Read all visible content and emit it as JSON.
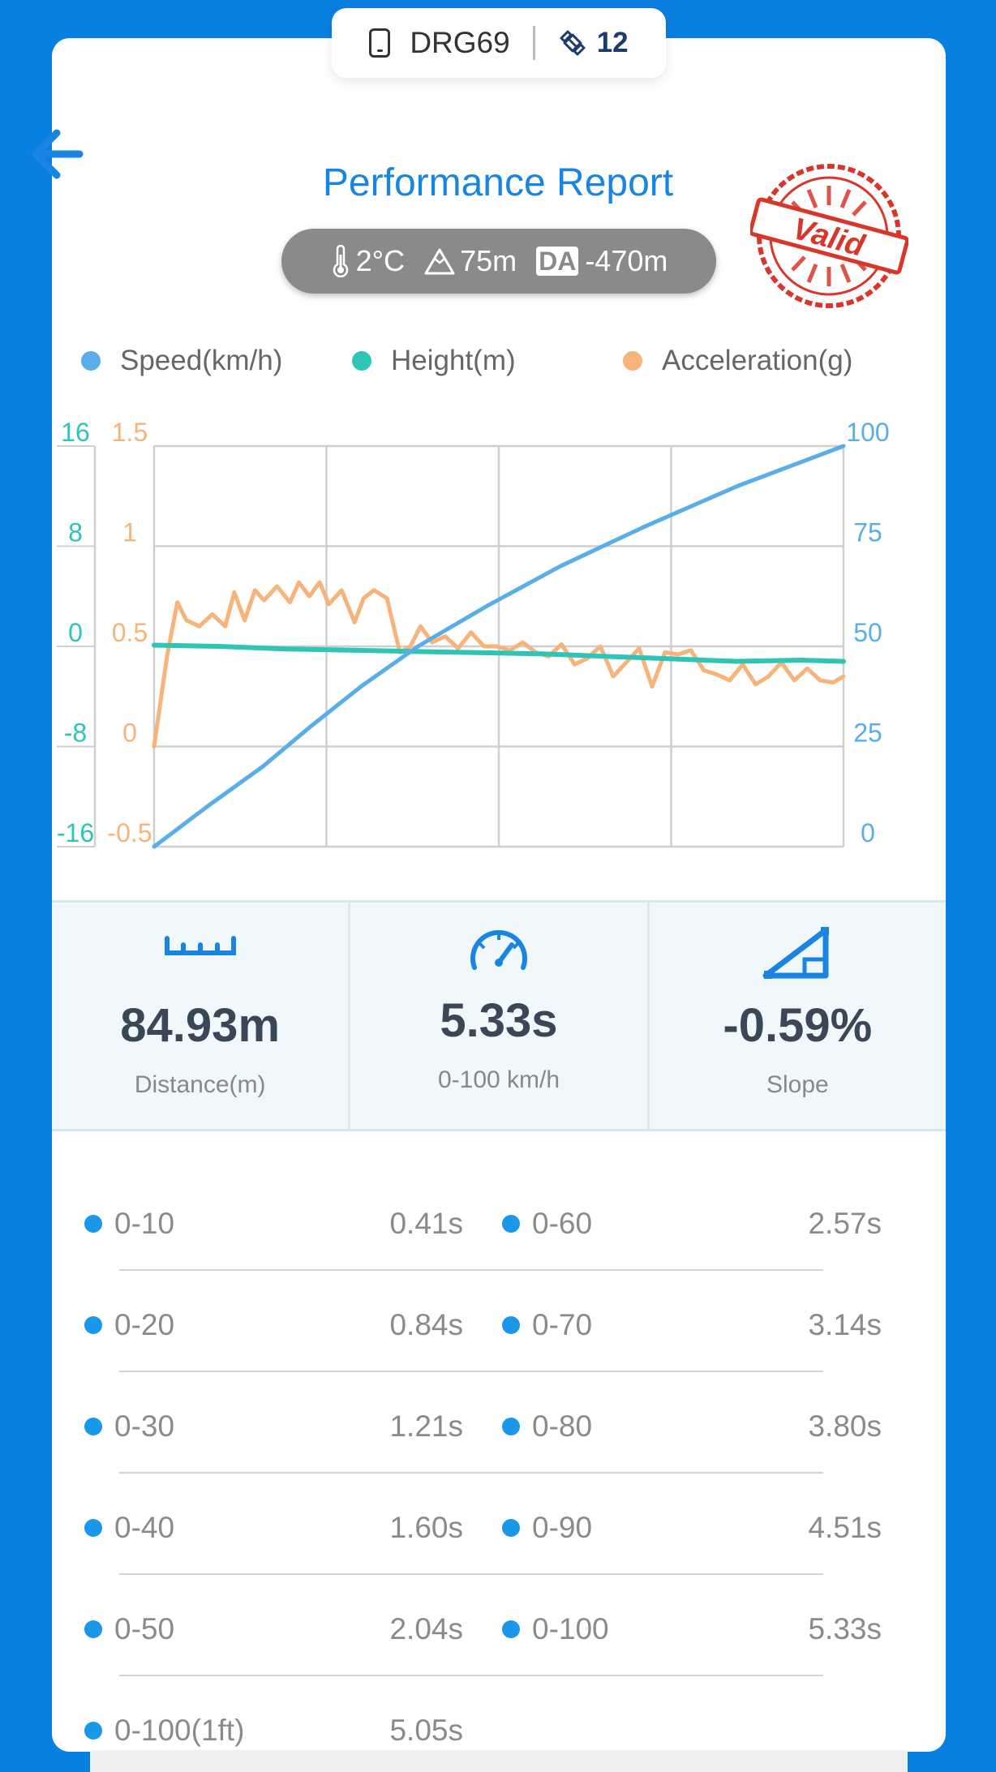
{
  "header": {
    "device_id": "DRG69",
    "satellites": "12",
    "title": "Performance Report",
    "stamp_text": "Valid"
  },
  "conditions": {
    "temperature": "2°C",
    "altitude": "75m",
    "da_label": "DA",
    "density_altitude": "-470m"
  },
  "colors": {
    "speed": "#5aaee8",
    "height": "#2ec4b6",
    "acceleration": "#f6b47a",
    "accent": "#1a85e0",
    "background": "#0a7fe2"
  },
  "chart_data": {
    "type": "line",
    "title": "",
    "grid": true,
    "legend_position": "top",
    "x_range": [
      0,
      5.33
    ],
    "axes": {
      "height_left": {
        "ticks": [
          "16",
          "8",
          "0",
          "-8",
          "-16"
        ],
        "range": [
          -16,
          16
        ]
      },
      "accel_left": {
        "ticks": [
          "1.5",
          "1",
          "0.5",
          "0",
          "-0.5"
        ],
        "range": [
          -0.5,
          1.5
        ]
      },
      "speed_right": {
        "ticks": [
          "100",
          "75",
          "50",
          "25",
          "0"
        ],
        "range": [
          0,
          100
        ]
      }
    },
    "series": [
      {
        "name": "Speed(km/h)",
        "axis": "speed_right",
        "x": [
          0,
          0.41,
          0.84,
          1.21,
          1.6,
          2.04,
          2.57,
          3.14,
          3.8,
          4.51,
          5.33
        ],
        "y": [
          0,
          10,
          20,
          30,
          40,
          50,
          60,
          70,
          80,
          90,
          100
        ]
      },
      {
        "name": "Height(m)",
        "axis": "height_left",
        "x": [
          0,
          0.5,
          1.0,
          1.5,
          2.0,
          2.5,
          3.0,
          3.5,
          4.0,
          4.5,
          5.0,
          5.33
        ],
        "y": [
          0.1,
          0.0,
          -0.2,
          -0.3,
          -0.4,
          -0.5,
          -0.6,
          -0.8,
          -1.0,
          -1.2,
          -1.1,
          -1.2
        ]
      },
      {
        "name": "Acceleration(g)",
        "axis": "accel_left",
        "x": [
          0,
          0.1,
          0.18,
          0.25,
          0.35,
          0.45,
          0.55,
          0.62,
          0.7,
          0.78,
          0.85,
          0.95,
          1.05,
          1.12,
          1.2,
          1.28,
          1.35,
          1.45,
          1.55,
          1.62,
          1.7,
          1.8,
          1.9,
          1.98,
          2.06,
          2.15,
          2.25,
          2.35,
          2.45,
          2.55,
          2.65,
          2.75,
          2.85,
          2.95,
          3.05,
          3.15,
          3.25,
          3.35,
          3.45,
          3.55,
          3.65,
          3.75,
          3.85,
          3.95,
          4.05,
          4.15,
          4.25,
          4.35,
          4.45,
          4.55,
          4.65,
          4.75,
          4.85,
          4.95,
          5.05,
          5.15,
          5.25,
          5.33
        ],
        "y": [
          0.0,
          0.45,
          0.72,
          0.63,
          0.6,
          0.66,
          0.6,
          0.77,
          0.63,
          0.78,
          0.73,
          0.8,
          0.72,
          0.82,
          0.75,
          0.82,
          0.71,
          0.78,
          0.62,
          0.74,
          0.78,
          0.74,
          0.47,
          0.5,
          0.6,
          0.52,
          0.55,
          0.49,
          0.57,
          0.5,
          0.5,
          0.48,
          0.52,
          0.47,
          0.45,
          0.51,
          0.41,
          0.44,
          0.5,
          0.35,
          0.42,
          0.49,
          0.3,
          0.47,
          0.46,
          0.48,
          0.38,
          0.36,
          0.33,
          0.41,
          0.31,
          0.35,
          0.42,
          0.33,
          0.39,
          0.33,
          0.32,
          0.35
        ]
      }
    ]
  },
  "stats": [
    {
      "value": "84.93m",
      "label": "Distance(m)",
      "icon": "ruler-icon"
    },
    {
      "value": "5.33s",
      "label": "0-100 km/h",
      "icon": "speedometer-icon"
    },
    {
      "value": "-0.59%",
      "label": "Slope",
      "icon": "slope-icon"
    }
  ],
  "splits": [
    {
      "left_label": "0-10",
      "left_time": "0.41s",
      "right_label": "0-60",
      "right_time": "2.57s"
    },
    {
      "left_label": "0-20",
      "left_time": "0.84s",
      "right_label": "0-70",
      "right_time": "3.14s"
    },
    {
      "left_label": "0-30",
      "left_time": "1.21s",
      "right_label": "0-80",
      "right_time": "3.80s"
    },
    {
      "left_label": "0-40",
      "left_time": "1.60s",
      "right_label": "0-90",
      "right_time": "4.51s"
    },
    {
      "left_label": "0-50",
      "left_time": "2.04s",
      "right_label": "0-100",
      "right_time": "5.33s"
    },
    {
      "left_label": "0-100(1ft)",
      "left_time": "5.05s",
      "right_label": "",
      "right_time": ""
    }
  ]
}
